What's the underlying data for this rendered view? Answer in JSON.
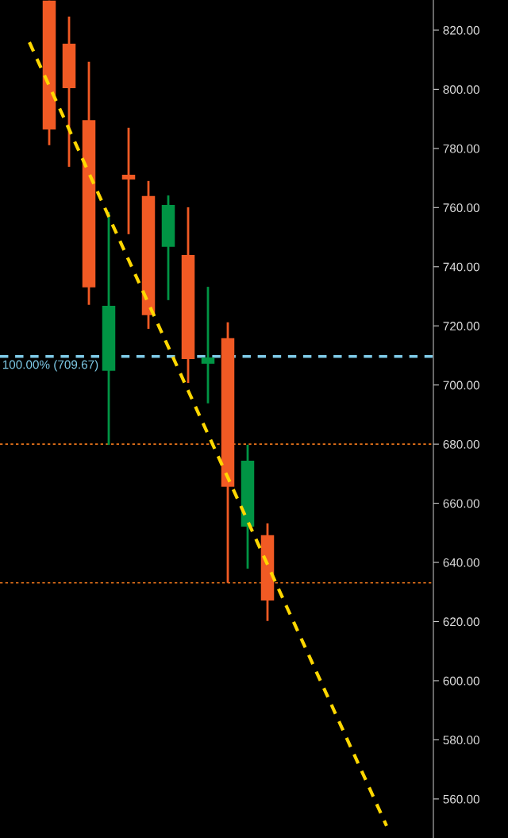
{
  "chart_data": {
    "type": "candlestick",
    "categories": [
      null,
      null,
      null,
      null,
      null,
      null,
      null,
      null,
      null,
      null,
      null,
      null,
      null,
      null,
      null,
      null,
      null,
      null,
      null,
      null,
      null,
      null
    ],
    "ohlc": [
      null,
      null,
      [
        830,
        830,
        781.1,
        786.4
      ],
      [
        815.4,
        824.6,
        773.8,
        800.4
      ],
      [
        789.6,
        809.3,
        727.1,
        733.0
      ],
      [
        704.8,
        758.5,
        679.8,
        726.8
      ],
      [
        771.1,
        787.0,
        751.0,
        769.5
      ],
      [
        763.9,
        769.0,
        719.0,
        723.6
      ],
      [
        746.7,
        764.1,
        728.7,
        760.9
      ],
      [
        744.0,
        760.1,
        700.7,
        708.8
      ],
      [
        707.2,
        733.2,
        693.8,
        709.3
      ],
      [
        715.8,
        721.2,
        633.1,
        665.6
      ],
      [
        652.1,
        679.8,
        637.9,
        674.4
      ],
      [
        649.2,
        653.2,
        620.2,
        627.1
      ],
      null,
      null,
      null,
      null,
      null,
      null,
      null,
      null
    ],
    "colors": [
      null,
      null,
      "#f15a24",
      "#f15a24",
      "#f15a24",
      "#009444",
      "#f15a24",
      "#f15a24",
      "#009444",
      "#f15a24",
      "#009444",
      "#f15a24",
      "#009444",
      "#f15a24",
      null,
      null,
      null,
      null,
      null,
      null,
      null,
      null
    ],
    "series": [
      {
        "type": "line",
        "values": [
          null,
          815.9,
          801.2,
          786.5,
          771.7,
          757.0,
          742.3,
          727.6,
          712.9,
          698.1,
          683.4,
          668.7,
          654.0,
          639.3,
          624.5,
          609.8,
          595.1,
          580.4,
          565.7,
          550.9,
          null,
          null
        ],
        "color": "#ffd700",
        "line_style": "dashed"
      }
    ],
    "ref_lines": [
      {
        "axis": "y",
        "value": 709.67,
        "label": "100.00% (709.67)",
        "color": "#7fcbe8",
        "line_style": "dashed"
      },
      {
        "axis": "y",
        "value": 680,
        "label": null,
        "color": "#e8731a",
        "line_style": "dotted"
      },
      {
        "axis": "y",
        "value": 633.1,
        "label": null,
        "color": "#e8731a",
        "line_style": "dotted"
      }
    ],
    "ylim": [
      546.8,
      830.2
    ],
    "yticks": [
      {
        "value": 560,
        "label": "560.00"
      },
      {
        "value": 580,
        "label": "580.00"
      },
      {
        "value": 600,
        "label": "600.00"
      },
      {
        "value": 620,
        "label": "620.00"
      },
      {
        "value": 640,
        "label": "640.00"
      },
      {
        "value": 660,
        "label": "660.00"
      },
      {
        "value": 680,
        "label": "680.00"
      },
      {
        "value": 700,
        "label": "700.00"
      },
      {
        "value": 720,
        "label": "720.00"
      },
      {
        "value": 740,
        "label": "740.00"
      },
      {
        "value": 760,
        "label": "760.00"
      },
      {
        "value": 780,
        "label": "780.00"
      },
      {
        "value": 800,
        "label": "800.00"
      },
      {
        "value": 820,
        "label": "820.00"
      }
    ],
    "tick_labels": "y",
    "grid": false,
    "legend": false
  }
}
